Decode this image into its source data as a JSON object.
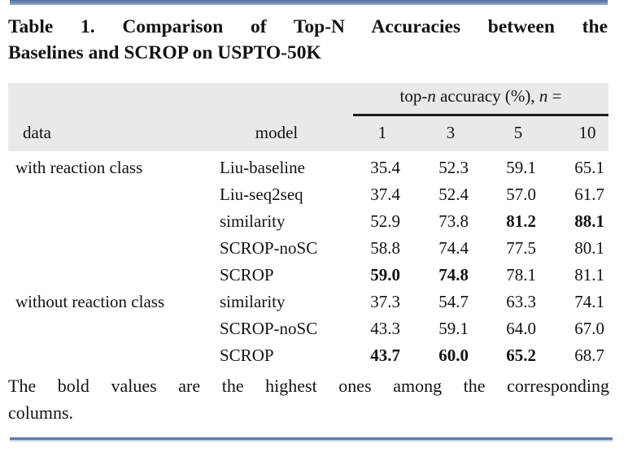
{
  "page": {
    "title_line1": "Table 1. Comparison of Top-N Accuracies between the",
    "title_line2": "Baselines and SCROP on USPTO-50K",
    "footnote_line1": "The bold values are the highest ones among the corresponding",
    "footnote_line2": "columns."
  },
  "colors": {
    "accent_bar_blue": "#5c7bab",
    "header_background_gray": "#e9e9e9",
    "rule_black": "#1c1c1c",
    "bottom_rule_blue": "#5a7aa9"
  },
  "table": {
    "group_header": {
      "p1": "top-",
      "p2": "n",
      "p3": " accuracy (%), ",
      "p4": "n",
      "p5": " ="
    },
    "col_headers": {
      "data": "data",
      "model": "model",
      "n": [
        "1",
        "3",
        "5",
        "10"
      ]
    },
    "rows": [
      {
        "data": "with reaction class",
        "model": "Liu-baseline",
        "values": [
          "35.4",
          "52.3",
          "59.1",
          "65.1"
        ],
        "bold": [
          false,
          false,
          false,
          false
        ]
      },
      {
        "data": "",
        "model": "Liu-seq2seq",
        "values": [
          "37.4",
          "52.4",
          "57.0",
          "61.7"
        ],
        "bold": [
          false,
          false,
          false,
          false
        ]
      },
      {
        "data": "",
        "model": "similarity",
        "values": [
          "52.9",
          "73.8",
          "81.2",
          "88.1"
        ],
        "bold": [
          false,
          false,
          true,
          true
        ]
      },
      {
        "data": "",
        "model": "SCROP-noSC",
        "values": [
          "58.8",
          "74.4",
          "77.5",
          "80.1"
        ],
        "bold": [
          false,
          false,
          false,
          false
        ]
      },
      {
        "data": "",
        "model": "SCROP",
        "values": [
          "59.0",
          "74.8",
          "78.1",
          "81.1"
        ],
        "bold": [
          true,
          true,
          false,
          false
        ]
      },
      {
        "data": "without reaction class",
        "model": "similarity",
        "values": [
          "37.3",
          "54.7",
          "63.3",
          "74.1"
        ],
        "bold": [
          false,
          false,
          false,
          false
        ]
      },
      {
        "data": "",
        "model": "SCROP-noSC",
        "values": [
          "43.3",
          "59.1",
          "64.0",
          "67.0"
        ],
        "bold": [
          false,
          false,
          false,
          false
        ]
      },
      {
        "data": "",
        "model": "SCROP",
        "values": [
          "43.7",
          "60.0",
          "65.2",
          "68.7"
        ],
        "bold": [
          true,
          true,
          true,
          false
        ]
      }
    ]
  }
}
